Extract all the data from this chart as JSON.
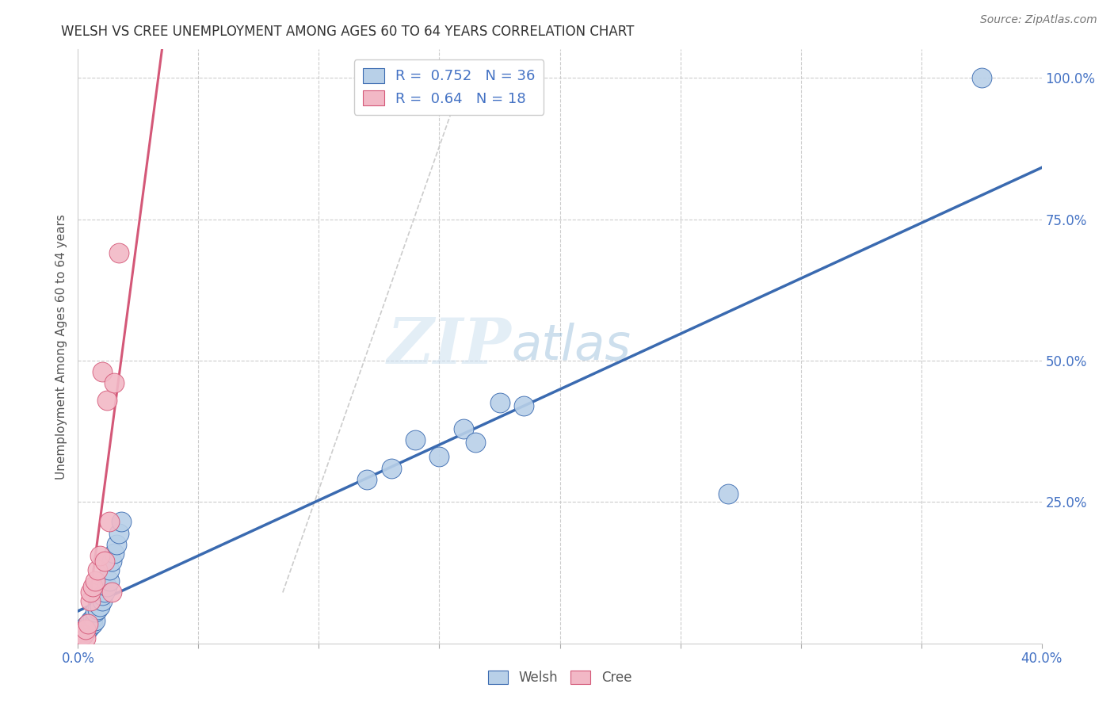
{
  "title": "WELSH VS CREE UNEMPLOYMENT AMONG AGES 60 TO 64 YEARS CORRELATION CHART",
  "source": "Source: ZipAtlas.com",
  "ylabel": "Unemployment Among Ages 60 to 64 years",
  "xlim": [
    0.0,
    0.4
  ],
  "ylim": [
    0.0,
    1.05
  ],
  "welsh_color": "#b8d0e8",
  "cree_color": "#f2b8c6",
  "welsh_line_color": "#3a6ab0",
  "cree_line_color": "#d45878",
  "welsh_R": 0.752,
  "welsh_N": 36,
  "cree_R": 0.64,
  "cree_N": 18,
  "watermark_zip": "ZIP",
  "watermark_atlas": "atlas",
  "welsh_x": [
    0.001,
    0.002,
    0.002,
    0.003,
    0.003,
    0.004,
    0.004,
    0.005,
    0.005,
    0.006,
    0.006,
    0.007,
    0.007,
    0.008,
    0.009,
    0.01,
    0.01,
    0.011,
    0.012,
    0.013,
    0.013,
    0.014,
    0.015,
    0.016,
    0.017,
    0.018,
    0.12,
    0.13,
    0.14,
    0.15,
    0.16,
    0.165,
    0.175,
    0.185,
    0.27,
    0.375
  ],
  "welsh_y": [
    0.02,
    0.015,
    0.025,
    0.02,
    0.03,
    0.025,
    0.035,
    0.03,
    0.04,
    0.035,
    0.045,
    0.04,
    0.055,
    0.06,
    0.065,
    0.075,
    0.085,
    0.09,
    0.1,
    0.11,
    0.13,
    0.145,
    0.16,
    0.175,
    0.195,
    0.215,
    0.29,
    0.31,
    0.36,
    0.33,
    0.38,
    0.355,
    0.425,
    0.42,
    0.265,
    1.0
  ],
  "cree_x": [
    0.001,
    0.002,
    0.003,
    0.003,
    0.004,
    0.005,
    0.005,
    0.006,
    0.007,
    0.008,
    0.009,
    0.01,
    0.011,
    0.012,
    0.013,
    0.014,
    0.015,
    0.017
  ],
  "cree_y": [
    0.02,
    0.015,
    0.01,
    0.025,
    0.035,
    0.075,
    0.09,
    0.1,
    0.11,
    0.13,
    0.155,
    0.48,
    0.145,
    0.43,
    0.215,
    0.09,
    0.46,
    0.69
  ],
  "diag_line_color": "#cccccc"
}
